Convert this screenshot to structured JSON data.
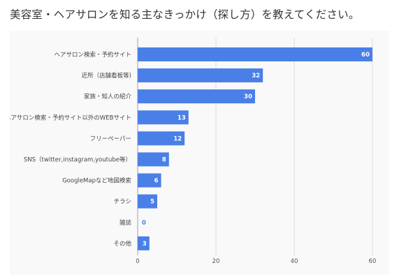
{
  "title": "美容室・ヘアサロンを知る主なきっかけ（探し方）を教えてください。",
  "chart_data": {
    "type": "bar",
    "orientation": "horizontal",
    "categories": [
      "ヘアサロン検索・予約サイト",
      "近所（店舗看板等)",
      "家族・知人の紹介",
      "ヘアサロン検索・予約サイト以外のWEBサイト",
      "フリーペーパー",
      "SNS（twitter,instagram,youtube等）",
      "GoogleMapなど地図検索",
      "チラシ",
      "雑誌",
      "その他"
    ],
    "values": [
      60,
      32,
      30,
      13,
      12,
      8,
      6,
      5,
      0,
      3
    ],
    "xlim": [
      0,
      60
    ],
    "xticks": [
      0,
      20,
      40,
      60
    ],
    "grid": true,
    "bar_color": "#4a7fe8",
    "xlabel": "",
    "ylabel": ""
  }
}
